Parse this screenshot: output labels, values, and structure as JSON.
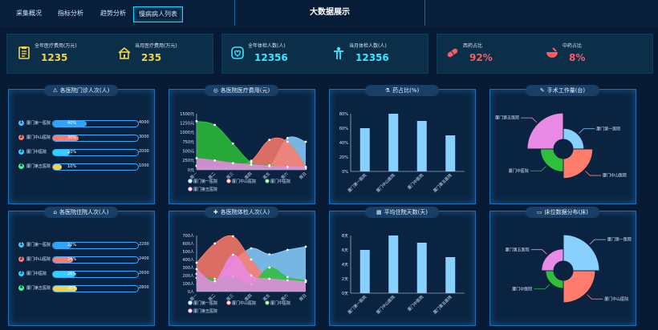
{
  "top_nav": {
    "tabs": [
      {
        "label": "采集概况"
      },
      {
        "label": "指标分析"
      },
      {
        "label": "趋势分析"
      },
      {
        "label": "慢病病人列表"
      }
    ],
    "title": "大数据展示"
  },
  "stats": {
    "group1": [
      {
        "label": "全年医疗费用(万元)",
        "value": "1235",
        "color": "#f3d24a",
        "icon": "clipboard-icon"
      },
      {
        "label": "当月医疗费用(万元)",
        "value": "235",
        "color": "#f3d24a",
        "icon": "house-icon"
      }
    ],
    "group2": [
      {
        "label": "全年体检人数(人)",
        "value": "12356",
        "color": "#3be6ff",
        "icon": "heart-shield-icon"
      },
      {
        "label": "当月体检人数(人)",
        "value": "12356",
        "color": "#3be6ff",
        "icon": "person-icon"
      }
    ],
    "group3": [
      {
        "label": "西药占比",
        "value": "92%",
        "color": "#ff5a64",
        "icon": "pill-icon"
      },
      {
        "label": "中药占比",
        "value": "8%",
        "color": "#ff5a64",
        "icon": "mortar-icon"
      }
    ]
  },
  "panels": {
    "outpatient": {
      "title": "各医院门诊人次(人)",
      "rows": [
        {
          "rank": "1",
          "name": "厦门第一医院",
          "pct": "40%",
          "value": "4000",
          "fill_pct": 40,
          "color": "#2fa3ff"
        },
        {
          "rank": "2",
          "name": "厦门中山医院",
          "pct": "30%",
          "value": "3000",
          "fill_pct": 30,
          "color": "#ff7b6b"
        },
        {
          "rank": "3",
          "name": "厦门中医院",
          "pct": "20%",
          "value": "2000",
          "fill_pct": 20,
          "color": "#2fd1ff"
        },
        {
          "rank": "4",
          "name": "厦门第五医院",
          "pct": "10%",
          "value": "1000",
          "fill_pct": 10,
          "color": "#f3d24a"
        }
      ]
    },
    "inpatient": {
      "title": "各医院住院人次(人)",
      "rows": [
        {
          "rank": "1",
          "name": "厦门第一医院",
          "pct": "22%",
          "value": "2200",
          "fill_pct": 22,
          "color": "#2fa3ff"
        },
        {
          "rank": "2",
          "name": "厦门中山医院",
          "pct": "24%",
          "value": "2400",
          "fill_pct": 24,
          "color": "#ff7b6b"
        },
        {
          "rank": "3",
          "name": "厦门中医院",
          "pct": "26%",
          "value": "2600",
          "fill_pct": 26,
          "color": "#2fd1ff"
        },
        {
          "rank": "4",
          "name": "厦门第五医院",
          "pct": "28%",
          "value": "2800",
          "fill_pct": 28,
          "color": "#f3d24a"
        }
      ]
    },
    "medical_cost": {
      "title": "各医院医疗费用(元)"
    },
    "drug_ratio": {
      "title": "药占比(%)"
    },
    "surgery": {
      "title": "手术工作量(台)"
    },
    "checkup": {
      "title": "各医院体检人次(人)"
    },
    "stay_days": {
      "title": "平均住院天数(天)"
    },
    "beds": {
      "title": "床位数据分布(床)"
    }
  },
  "chart_data": [
    {
      "type": "area",
      "x": [
        "周一",
        "周二",
        "周三",
        "周四",
        "周五",
        "周六",
        "周日"
      ],
      "ylim": [
        0,
        1500
      ],
      "yticks": [
        "0元",
        "250元",
        "500元",
        "750元",
        "1000元",
        "1250元",
        "1500元"
      ],
      "series": [
        {
          "name": "厦门第一医院",
          "values": [
            110,
            60,
            95,
            85,
            80,
            850,
            750
          ],
          "color": "#88d1ff"
        },
        {
          "name": "厦门中山医院",
          "values": [
            100,
            80,
            135,
            240,
            800,
            750,
            80
          ],
          "color": "#ff7b6b"
        },
        {
          "name": "厦门中医院",
          "values": [
            1300,
            1200,
            700,
            200,
            120,
            60,
            30
          ],
          "color": "#2fbf3a"
        },
        {
          "name": "厦门第五医院",
          "values": [
            310,
            250,
            180,
            140,
            100,
            80,
            70
          ],
          "color": "#e98ae6"
        }
      ]
    },
    {
      "type": "bar",
      "categories": [
        "厦门第一医院",
        "厦门中山医院",
        "厦门中医院",
        "厦门第五医院"
      ],
      "values": [
        60,
        80,
        70,
        50
      ],
      "ylim": [
        0,
        80
      ],
      "yticks": [
        "0%",
        "20%",
        "40%",
        "60%",
        "80%"
      ],
      "color": "#88d1ff"
    },
    {
      "type": "pie",
      "categories": [
        "厦门第一医院",
        "厦门中山医院",
        "厦门中医院",
        "厦门第五医院"
      ],
      "values": [
        25,
        45,
        30,
        60
      ],
      "colors": [
        "#88d1ff",
        "#ff7b6b",
        "#2fbf3a",
        "#e98ae6"
      ]
    },
    {
      "type": "area",
      "x": [
        "周一",
        "周二",
        "周三",
        "周四",
        "周五",
        "周六",
        "周日"
      ],
      "ylim": [
        0,
        700
      ],
      "yticks": [
        "0人",
        "100人",
        "200人",
        "300人",
        "400人",
        "500人",
        "600人",
        "700人"
      ],
      "series": [
        {
          "name": "厦门第一医院",
          "values": [
            170,
            115,
            360,
            540,
            465,
            520,
            560
          ],
          "color": "#88d1ff"
        },
        {
          "name": "厦门中山医院",
          "values": [
            360,
            600,
            690,
            400,
            140,
            120,
            130
          ],
          "color": "#ff7b6b"
        },
        {
          "name": "厦门中医院",
          "values": [
            220,
            160,
            190,
            90,
            300,
            180,
            140
          ],
          "color": "#2fbf3a"
        },
        {
          "name": "厦门第五医院",
          "values": [
            280,
            130,
            460,
            200,
            160,
            140,
            120
          ],
          "color": "#e98ae6"
        }
      ]
    },
    {
      "type": "bar",
      "categories": [
        "厦门第一医院",
        "厦门中山医院",
        "厦门中医院",
        "厦门第五医院"
      ],
      "values": [
        6,
        8,
        7,
        5
      ],
      "ylim": [
        0,
        8
      ],
      "yticks": [
        "0天",
        "2天",
        "4天",
        "6天",
        "8天"
      ],
      "color": "#88d1ff"
    },
    {
      "type": "pie",
      "categories": [
        "厦门第一医院",
        "厦门中山医院",
        "厦门中医院",
        "厦门第五医院"
      ],
      "values": [
        65,
        55,
        20,
        30
      ],
      "colors": [
        "#88d1ff",
        "#ff7b6b",
        "#2fbf3a",
        "#e98ae6"
      ]
    }
  ]
}
